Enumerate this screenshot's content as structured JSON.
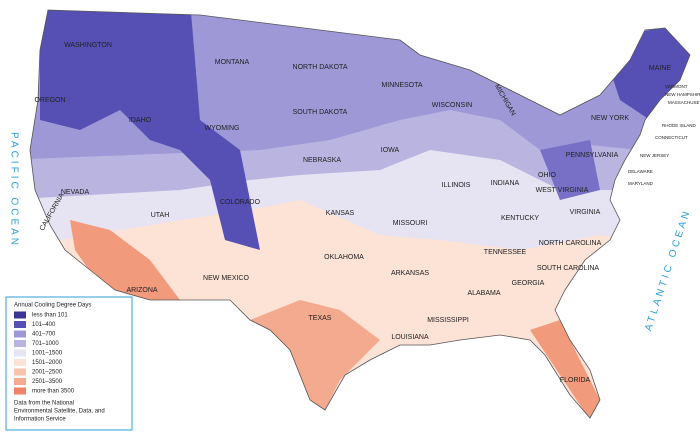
{
  "legend": {
    "title": "Annual Cooling Degree Days",
    "items": [
      {
        "label": "less than 101",
        "color": "#3a3597"
      },
      {
        "label": "101–400",
        "color": "#5650b5"
      },
      {
        "label": "401–700",
        "color": "#9e98d6"
      },
      {
        "label": "701–1000",
        "color": "#bab5e0"
      },
      {
        "label": "1001–1500",
        "color": "#e6e3f2"
      },
      {
        "label": "1501–2000",
        "color": "#fde2d6"
      },
      {
        "label": "2001–2500",
        "color": "#f8c2ab"
      },
      {
        "label": "2501–3500",
        "color": "#f4aa8e"
      },
      {
        "label": "more than 3500",
        "color": "#f0826a"
      }
    ],
    "source": [
      "Data from the National",
      "Environmental Satellite, Data, and",
      "Information Service"
    ]
  },
  "states": [
    "WASHINGTON",
    "OREGON",
    "IDAHO",
    "MONTANA",
    "WYOMING",
    "NEVADA",
    "CALIFORNIA",
    "UTAH",
    "COLORADO",
    "ARIZONA",
    "NEW MEXICO",
    "NORTH DAKOTA",
    "SOUTH DAKOTA",
    "NEBRASKA",
    "KANSAS",
    "OKLAHOMA",
    "TEXAS",
    "MINNESOTA",
    "IOWA",
    "MISSOURI",
    "ARKANSAS",
    "LOUISIANA",
    "WISCONSIN",
    "MICHIGAN",
    "ILLINOIS",
    "INDIANA",
    "OHIO",
    "KENTUCKY",
    "TENNESSEE",
    "MISSISSIPPI",
    "ALABAMA",
    "GEORGIA",
    "FLORIDA",
    "SOUTH CAROLINA",
    "NORTH CAROLINA",
    "VIRGINIA",
    "WEST VIRGINIA",
    "PENNSYLVANIA",
    "NEW YORK",
    "MAINE"
  ],
  "small_states": [
    "VERMONT",
    "NEW HAMPSHIRE",
    "MASSACHUSETTS",
    "RHODE ISLAND",
    "CONNECTICUT",
    "NEW JERSEY",
    "DELAWARE",
    "MARYLAND"
  ],
  "oceans": [
    "PACIFIC OCEAN",
    "ATLANTIC OCEAN"
  ]
}
